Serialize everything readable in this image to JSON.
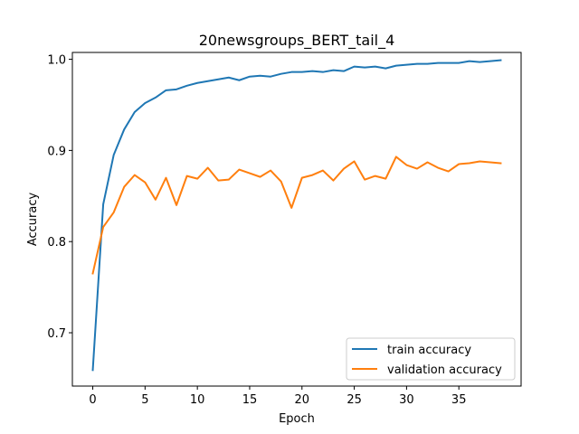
{
  "chart_data": {
    "type": "line",
    "title": "20newsgroups_BERT_tail_4",
    "xlabel": "Epoch",
    "ylabel": "Accuracy",
    "xlim": [
      -1.95,
      40.95
    ],
    "ylim": [
      0.6415,
      1.0075
    ],
    "xticks": [
      0,
      5,
      10,
      15,
      20,
      25,
      30,
      35
    ],
    "yticks": [
      0.7,
      0.8,
      0.9,
      1.0
    ],
    "ytick_labels": [
      "0.7",
      "0.8",
      "0.9",
      "1.0"
    ],
    "legend_position": "lower right",
    "grid": false,
    "x": [
      0,
      1,
      2,
      3,
      4,
      5,
      6,
      7,
      8,
      9,
      10,
      11,
      12,
      13,
      14,
      15,
      16,
      17,
      18,
      19,
      20,
      21,
      22,
      23,
      24,
      25,
      26,
      27,
      28,
      29,
      30,
      31,
      32,
      33,
      34,
      35,
      36,
      37,
      38,
      39
    ],
    "series": [
      {
        "name": "train accuracy",
        "color": "#1f77b4",
        "values": [
          0.659,
          0.841,
          0.895,
          0.923,
          0.942,
          0.952,
          0.958,
          0.966,
          0.967,
          0.971,
          0.974,
          0.976,
          0.978,
          0.98,
          0.977,
          0.981,
          0.982,
          0.981,
          0.984,
          0.986,
          0.986,
          0.987,
          0.986,
          0.988,
          0.987,
          0.992,
          0.991,
          0.992,
          0.99,
          0.993,
          0.994,
          0.995,
          0.995,
          0.996,
          0.996,
          0.996,
          0.998,
          0.997,
          0.998,
          0.999
        ]
      },
      {
        "name": "validation accuracy",
        "color": "#ff7f0e",
        "values": [
          0.765,
          0.816,
          0.832,
          0.86,
          0.873,
          0.865,
          0.846,
          0.87,
          0.84,
          0.872,
          0.869,
          0.881,
          0.867,
          0.868,
          0.879,
          0.875,
          0.871,
          0.878,
          0.866,
          0.837,
          0.87,
          0.873,
          0.878,
          0.867,
          0.88,
          0.888,
          0.868,
          0.872,
          0.869,
          0.893,
          0.884,
          0.88,
          0.887,
          0.881,
          0.877,
          0.885,
          0.886,
          0.888,
          0.887,
          0.886
        ]
      }
    ]
  }
}
